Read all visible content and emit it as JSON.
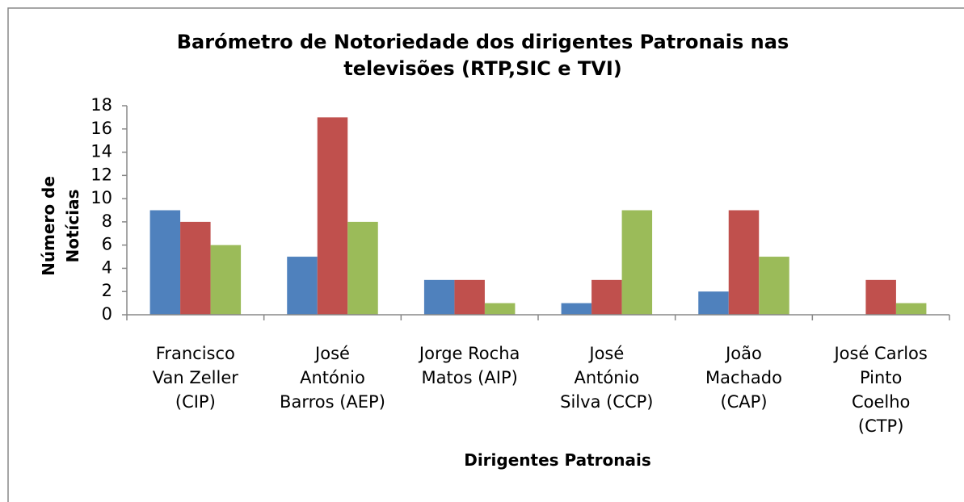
{
  "chart_data": {
    "type": "bar",
    "title": "Barómetro de Notoriedade dos dirigentes Patronais nas\ntelevisões (RTP,SIC e TVI)",
    "x_label": "Dirigentes Patronais",
    "y_label": "Número de Notícias",
    "categories": [
      "Francisco\nVan Zeller\n(CIP)",
      "José\nAntónio\nBarros (AEP)",
      "Jorge Rocha\nMatos (AIP)",
      "José\nAntónio\nSilva (CCP)",
      "João\nMachado\n(CAP)",
      "José Carlos\nPinto\nCoelho\n(CTP)"
    ],
    "series": [
      {
        "color": "#4f81bd",
        "values": [
          9,
          5,
          3,
          1,
          2,
          0
        ]
      },
      {
        "color": "#c0504d",
        "values": [
          8,
          17,
          3,
          3,
          9,
          3
        ]
      },
      {
        "color": "#9bbb59",
        "values": [
          6,
          8,
          1,
          9,
          5,
          1
        ]
      }
    ],
    "ylim": [
      0,
      18
    ],
    "yticks": [
      0,
      2,
      4,
      6,
      8,
      10,
      12,
      14,
      16,
      18
    ],
    "grid": false
  }
}
